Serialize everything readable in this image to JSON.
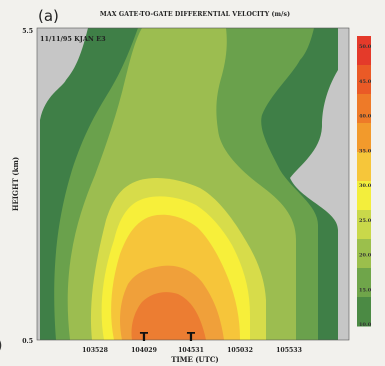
{
  "panel_label": "(a)",
  "chart_data": {
    "type": "heatmap",
    "title": "MAX GATE-TO-GATE DIFFERENTIAL VELOCITY (m/s)",
    "annotation": "11/11/95 KJAN E3",
    "xlabel": "TIME (UTC)",
    "ylabel": "HEIGHT (km)",
    "x_ticks": [
      "103528",
      "104029",
      "104531",
      "105032",
      "105533"
    ],
    "y_ticks": [
      "0.5",
      "5.5"
    ],
    "ylim": [
      0.5,
      5.5
    ],
    "marker_label": "T",
    "markers_at": [
      "104029",
      "104531"
    ],
    "colorbar": {
      "labels": [
        "50.0",
        "45.0",
        "40.0",
        "35.0",
        "30.0",
        "25.0",
        "20.0",
        "15.0",
        "10.0"
      ],
      "colors": [
        "#e43a2a",
        "#ea5a26",
        "#ee7a28",
        "#f29a2c",
        "#f6c63a",
        "#f3ee3c",
        "#c9d84a",
        "#9bbf4c",
        "#6fa54a",
        "#4b8a44"
      ]
    },
    "contour_levels_ms": [
      10,
      15,
      20,
      25,
      30,
      35,
      40
    ],
    "contour_colors": [
      "#3f7f47",
      "#6aa14c",
      "#9cbd50",
      "#d7dc4a",
      "#f7ef3a",
      "#f6c53a",
      "#f0a03a"
    ],
    "core_color": "#ec7d32",
    "background_color": "#c6c6c6",
    "grid": false,
    "legend": "right"
  }
}
